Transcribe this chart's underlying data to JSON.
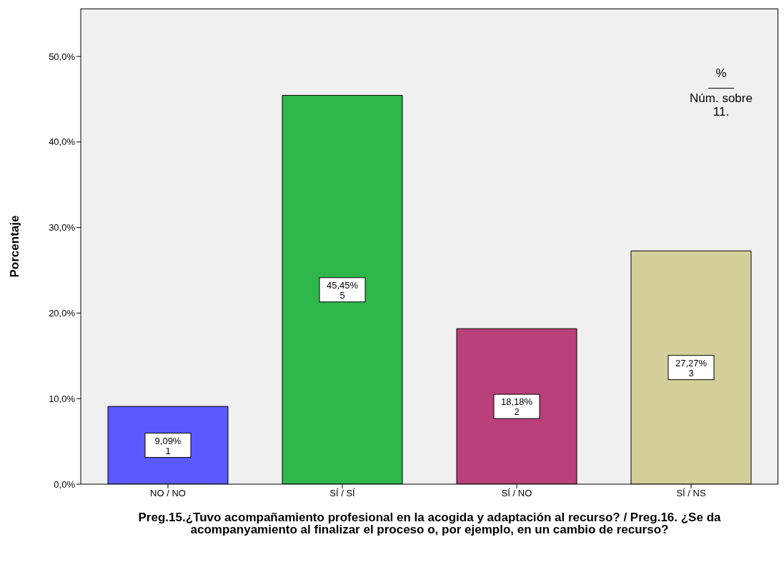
{
  "chart_data": {
    "type": "bar",
    "ylabel": "Porcentaje",
    "xlabel": "Preg.15.¿Tuvo acompañamiento profesional en la acogida y adaptación al recurso? / Preg.16. ¿Se da acompanyamiento al finalizar el proceso o, por ejemplo, en un cambio de recurso?",
    "categories": [
      "NO / NO",
      "SÍ / SÍ",
      "SÍ / NO",
      "SÍ / NS"
    ],
    "values": [
      9.09,
      45.45,
      18.18,
      27.27
    ],
    "colors": [
      "#5a5aff",
      "#2eb84b",
      "#b9407a",
      "#d4cf9a"
    ],
    "value_labels": [
      "9,09%\n1",
      "45,45%\n5",
      "18,18%\n2",
      "27,27%\n3"
    ],
    "ylim": [
      0,
      55.6
    ],
    "yticks": [
      {
        "value": 0,
        "label": "0,0%"
      },
      {
        "value": 10,
        "label": "10,0%"
      },
      {
        "value": 20,
        "label": "20,0%"
      },
      {
        "value": 30,
        "label": "30,0%"
      },
      {
        "value": 40,
        "label": "40,0%"
      },
      {
        "value": 50,
        "label": "50,0%"
      }
    ],
    "annotations": [
      "%",
      "Núm. sobre\n11."
    ]
  }
}
